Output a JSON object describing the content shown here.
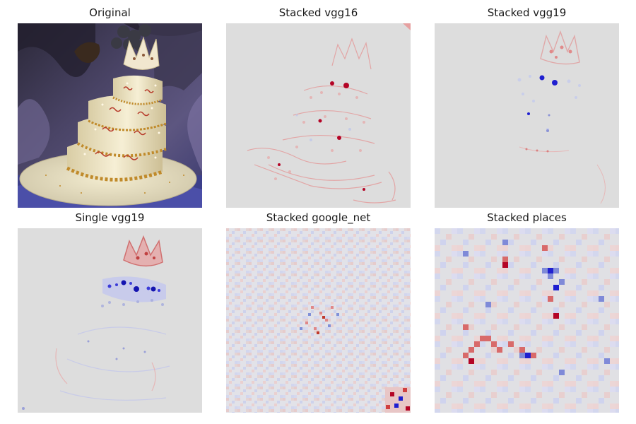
{
  "figure": {
    "panels": [
      {
        "title": "Original",
        "icon": "decorated-tiered-cake-photo"
      },
      {
        "title": "Stacked vgg16",
        "icon": "saliency-heatmap"
      },
      {
        "title": "Stacked vgg19",
        "icon": "saliency-heatmap"
      },
      {
        "title": "Single vgg19",
        "icon": "saliency-heatmap"
      },
      {
        "title": "Stacked google_net",
        "icon": "saliency-heatmap-noisy"
      },
      {
        "title": "Stacked places",
        "icon": "saliency-heatmap-blocky"
      }
    ],
    "colors": {
      "positive": "#b40426",
      "negative": "#1f1fd0",
      "neutral": "#dddddd",
      "cake": "#efe6c8",
      "gold": "#c08a2a",
      "background_dark": "#3a3350"
    }
  }
}
